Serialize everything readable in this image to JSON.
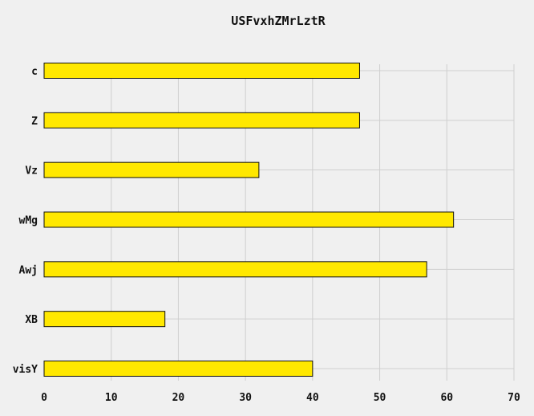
{
  "chart_data": {
    "type": "bar",
    "orientation": "horizontal",
    "title": "USFvxhZMrLztR",
    "xlabel": "",
    "ylabel": "",
    "categories": [
      "c",
      "Z",
      "Vz",
      "wMg",
      "Awj",
      "XB",
      "visY"
    ],
    "values": [
      47,
      47,
      32,
      61,
      57,
      18,
      40
    ],
    "xlim": [
      0,
      70
    ],
    "xticks": [
      0,
      10,
      20,
      30,
      40,
      50,
      60,
      70
    ],
    "grid": true,
    "legend": "none",
    "colors": {
      "bar_fill": "#ffe800",
      "bar_edge": "#111111",
      "background": "#f0f0f0",
      "grid": "#cfcfcf"
    }
  }
}
